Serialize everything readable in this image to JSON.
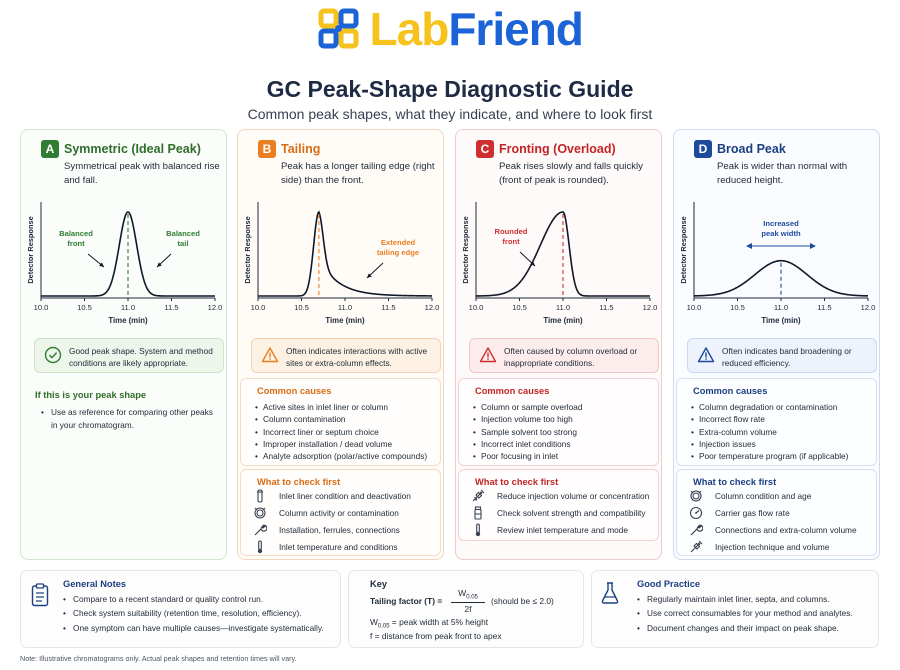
{
  "brand": {
    "lab": "Lab",
    "friend": "Friend",
    "logo_icon": "molecule-grid-logo",
    "yellow": "#f6c21c",
    "blue": "#1d63d8"
  },
  "title": "GC Peak-Shape Diagnostic Guide",
  "subtitle": "Common peak shapes, what they indicate, and where to look first",
  "chart_common": {
    "ylabel": "Detector Response",
    "xlabel": "Time (min)",
    "xticks": [
      "10.0",
      "10.5",
      "11.0",
      "11.5",
      "12.0"
    ]
  },
  "cards": [
    {
      "letter": "A",
      "title": "Symmetric (Ideal Peak)",
      "color": "#2f7d32",
      "description": "Symmetrical peak with balanced rise and fall.",
      "annotations": [
        "Balanced\nfront",
        "Balanced\ntail"
      ],
      "callout_icon": "check-circle-icon",
      "callout": "Good peak shape. System and method conditions are likely appropriate.",
      "if_title": "If this is your peak shape",
      "if_text": "Use as reference for comparing other peaks in your chromatogram."
    },
    {
      "letter": "B",
      "title": "Tailing",
      "color": "#ea7f22",
      "description": "Peak has a longer tailing edge (right side) than the front.",
      "annotations": [
        "Extended\ntailing edge"
      ],
      "callout_icon": "warning-triangle-icon",
      "callout": "Often indicates interactions with active sites or extra-column effects.",
      "causes_title": "Common causes",
      "causes": [
        "Active sites in inlet liner or column",
        "Column contamination",
        "Incorrect liner or septum choice",
        "Improper installation / dead volume",
        "Analyte adsorption (polar/active compounds)"
      ],
      "check_title": "What to check first",
      "checks": [
        {
          "icon": "liner-tube-icon",
          "text": "Inlet liner condition and deactivation"
        },
        {
          "icon": "column-coil-icon",
          "text": "Column activity or contamination"
        },
        {
          "icon": "wrench-icon",
          "text": "Installation, ferrules, connections"
        },
        {
          "icon": "thermometer-icon",
          "text": "Inlet temperature and conditions"
        }
      ]
    },
    {
      "letter": "C",
      "title": "Fronting (Overload)",
      "color": "#cf2f2f",
      "description": "Peak rises slowly and falls quickly (front of peak is rounded).",
      "annotations": [
        "Rounded\nfront"
      ],
      "callout_icon": "warning-triangle-icon",
      "callout": "Often caused by column overload or inappropriate conditions.",
      "causes_title": "Common causes",
      "causes": [
        "Column or sample overload",
        "Injection volume too high",
        "Sample solvent too strong",
        "Incorrect inlet conditions",
        "Poor focusing in inlet"
      ],
      "check_title": "What to check first",
      "checks": [
        {
          "icon": "syringe-icon",
          "text": "Reduce injection volume or concentration"
        },
        {
          "icon": "vial-icon",
          "text": "Check solvent strength and compatibility"
        },
        {
          "icon": "thermometer-icon",
          "text": "Review inlet temperature and mode"
        }
      ]
    },
    {
      "letter": "D",
      "title": "Broad Peak",
      "color": "#1d4a9a",
      "description": "Peak is wider than normal with reduced height.",
      "annotations": [
        "Increased\npeak width"
      ],
      "callout_icon": "warning-triangle-icon",
      "callout": "Often indicates band broadening or reduced efficiency.",
      "causes_title": "Common causes",
      "causes": [
        "Column degradation or contamination",
        "Incorrect flow rate",
        "Extra-column volume",
        "Injection issues",
        "Poor temperature program (if applicable)"
      ],
      "check_title": "What to check first",
      "checks": [
        {
          "icon": "column-coil-icon",
          "text": "Column condition and age"
        },
        {
          "icon": "gauge-icon",
          "text": "Carrier gas flow rate"
        },
        {
          "icon": "wrench-icon",
          "text": "Connections and extra-column volume"
        },
        {
          "icon": "syringe-icon",
          "text": "Injection technique and volume"
        }
      ]
    }
  ],
  "chart_data": [
    {
      "type": "line",
      "title": "Symmetric (Ideal Peak)",
      "xlabel": "Time (min)",
      "ylabel": "Detector Response",
      "xlim": [
        10.0,
        12.0
      ],
      "peak": {
        "apex_x": 11.0,
        "sigma_front": 0.1,
        "sigma_tail": 0.1,
        "relative_height": 1.0
      }
    },
    {
      "type": "line",
      "title": "Tailing",
      "xlabel": "Time (min)",
      "ylabel": "Detector Response",
      "xlim": [
        10.0,
        12.0
      ],
      "peak": {
        "apex_x": 10.7,
        "sigma_front": 0.06,
        "tail_decay": 0.22,
        "relative_height": 1.0
      }
    },
    {
      "type": "line",
      "title": "Fronting (Overload)",
      "xlabel": "Time (min)",
      "ylabel": "Detector Response",
      "xlim": [
        10.0,
        12.0
      ],
      "peak": {
        "apex_x": 11.0,
        "sigma_front": 0.26,
        "sigma_tail": 0.07,
        "relative_height": 1.0
      }
    },
    {
      "type": "line",
      "title": "Broad Peak",
      "xlabel": "Time (min)",
      "ylabel": "Detector Response",
      "xlim": [
        10.0,
        12.0
      ],
      "peak": {
        "apex_x": 11.0,
        "sigma_front": 0.3,
        "sigma_tail": 0.3,
        "relative_height": 0.42
      }
    }
  ],
  "general_notes": {
    "title": "General Notes",
    "icon": "clipboard-icon",
    "items": [
      "Compare to a recent standard or quality control run.",
      "Check system suitability (retention time, resolution, efficiency).",
      "One symptom can have multiple causes—investigate systematically."
    ]
  },
  "key": {
    "title": "Key",
    "tf_label": "Tailing factor (T) =",
    "tf_num": "W",
    "tf_num_sub": "0.05",
    "tf_den": "2f",
    "tf_note": "(should be ≤ 2.0)",
    "w_sym": "W",
    "w_sub": "0.05",
    "w_def": " = peak width at 5% height",
    "f_def": "f  = distance from peak front to apex"
  },
  "good_practice": {
    "title": "Good Practice",
    "icon": "flask-icon",
    "items": [
      "Regularly maintain inlet liner, septa, and columns.",
      "Use correct consumables for your method and analytes.",
      "Document changes and their impact on peak shape."
    ]
  },
  "footnote": "Note: Illustrative chromatograms only. Actual peak shapes and retention times will vary."
}
